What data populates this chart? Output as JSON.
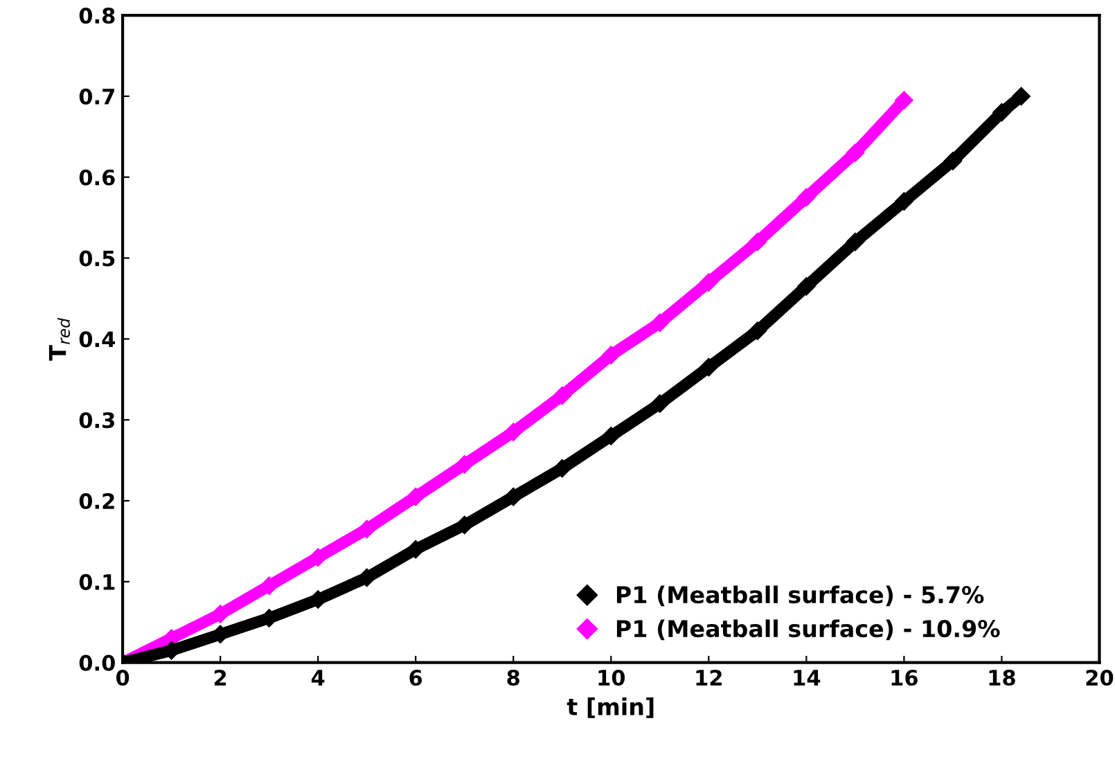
{
  "chart_data": {
    "type": "line",
    "xlabel": "t [min]",
    "ylabel": "T$_{red}$",
    "xlim": [
      0,
      20
    ],
    "xticks": [
      0,
      2,
      4,
      6,
      8,
      10,
      12,
      14,
      16,
      18,
      20
    ],
    "ylim": [
      0,
      0.8
    ],
    "yticks": [
      {
        "value": 0,
        "label": "0.0"
      },
      0.1,
      0.2,
      0.3,
      0.4,
      0.5,
      0.6,
      0.7,
      0.8
    ],
    "marker": "diamond",
    "legend": "bottom right",
    "grid": false,
    "series": [
      {
        "name": "P1 (Meatball surface) - 5.7%",
        "color": "#000000",
        "x": [
          0,
          1,
          2,
          3,
          4,
          5,
          6,
          7,
          8,
          9,
          10,
          11,
          12,
          13,
          14,
          15,
          16,
          17,
          18,
          18.4
        ],
        "values": [
          0,
          0.015,
          0.035,
          0.055,
          0.078,
          0.105,
          0.14,
          0.17,
          0.205,
          0.24,
          0.28,
          0.32,
          0.365,
          0.41,
          0.465,
          0.52,
          0.57,
          0.62,
          0.68,
          0.7
        ]
      },
      {
        "name": "P1 (Meatball surface) - 10.9%",
        "color": "#ff00ff",
        "x": [
          0,
          1,
          2,
          3,
          4,
          5,
          6,
          7,
          8,
          9,
          10,
          11,
          12,
          13,
          14,
          15,
          16
        ],
        "values": [
          0,
          0.03,
          0.06,
          0.095,
          0.13,
          0.165,
          0.205,
          0.245,
          0.285,
          0.33,
          0.38,
          0.42,
          0.47,
          0.52,
          0.575,
          0.63,
          0.695
        ]
      }
    ]
  }
}
